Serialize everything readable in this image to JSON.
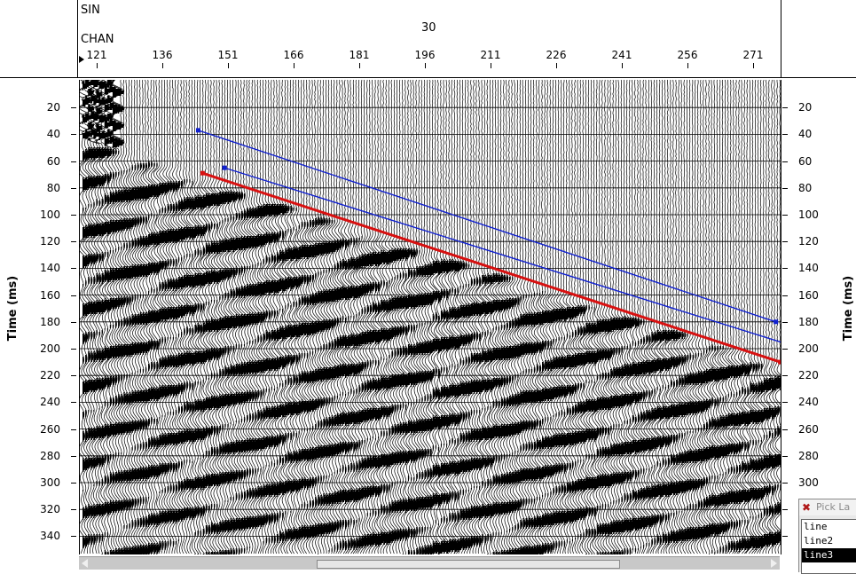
{
  "header": {
    "sin_label": "SIN",
    "sin_value": "30",
    "chan_label": "CHAN",
    "channel_labels": [
      "121",
      "136",
      "151",
      "166",
      "181",
      "196",
      "211",
      "226",
      "241",
      "256",
      "271"
    ]
  },
  "axes": {
    "y_title_left": "Time (ms)",
    "y_title_right": "Time (ms)",
    "time_labels": [
      "20",
      "40",
      "60",
      "80",
      "100",
      "120",
      "140",
      "160",
      "180",
      "200",
      "220",
      "240",
      "260",
      "280",
      "300",
      "320",
      "340"
    ]
  },
  "picks": [
    {
      "name": "line",
      "color": "#d81010",
      "start": {
        "chan": 145,
        "time": 69
      },
      "end": {
        "chan": 277,
        "time": 210
      }
    },
    {
      "name": "line2",
      "color": "#1020d0",
      "start": {
        "chan": 150,
        "time": 65
      },
      "end": {
        "chan": 278,
        "time": 196
      }
    },
    {
      "name": "line3",
      "color": "#1020d0",
      "start": {
        "chan": 144,
        "time": 37
      },
      "end": {
        "chan": 276,
        "time": 180
      }
    }
  ],
  "pick_panel": {
    "title": "Pick La",
    "items": [
      "line",
      "line2",
      "line3"
    ],
    "selected": "line3"
  },
  "colors": {
    "trace": "#000000",
    "grid": "#000000",
    "pick_red": "#d81010",
    "pick_blue": "#1020d0",
    "background": "#ffffff"
  }
}
